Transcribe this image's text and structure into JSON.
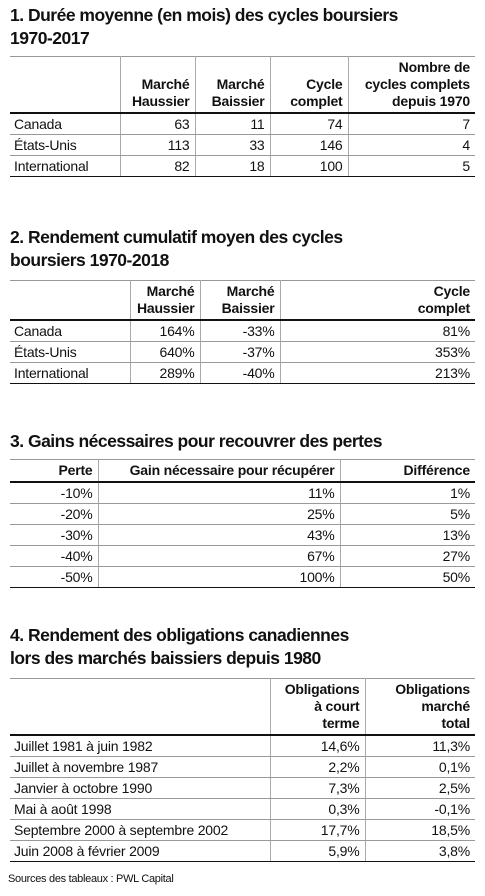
{
  "tables": [
    {
      "title": [
        "1. Durée moyenne (en mois) des cycles boursiers",
        "1970-2017"
      ],
      "columns": [
        [
          "Marché",
          "Haussier"
        ],
        [
          "Marché",
          "Baissier"
        ],
        [
          "Cycle",
          "complet"
        ],
        [
          "Nombre de",
          "cycles complets",
          "depuis 1970"
        ]
      ],
      "rows": [
        [
          "Canada",
          "63",
          "11",
          "74",
          "7"
        ],
        [
          "États-Unis",
          "113",
          "33",
          "146",
          "4"
        ],
        [
          "International",
          "82",
          "18",
          "100",
          "5"
        ]
      ]
    },
    {
      "title": [
        "2. Rendement cumulatif moyen des cycles",
        "boursiers 1970-2018"
      ],
      "columns": [
        [
          "Marché",
          "Haussier"
        ],
        [
          "Marché",
          "Baissier"
        ],
        [
          "Cycle",
          "complet"
        ]
      ],
      "rows": [
        [
          "Canada",
          "164%",
          "-33%",
          "81%"
        ],
        [
          "États-Unis",
          "640%",
          "-37%",
          "353%"
        ],
        [
          "International",
          "289%",
          "-40%",
          "213%"
        ]
      ]
    },
    {
      "title": [
        "3. Gains nécessaires pour recouvrer des pertes"
      ],
      "columns": [
        [
          "Perte"
        ],
        [
          "Gain nécessaire pour récupérer"
        ],
        [
          "Différence"
        ]
      ],
      "rows": [
        [
          "-10%",
          "11%",
          "1%"
        ],
        [
          "-20%",
          "25%",
          "5%"
        ],
        [
          "-30%",
          "43%",
          "13%"
        ],
        [
          "-40%",
          "67%",
          "27%"
        ],
        [
          "-50%",
          "100%",
          "50%"
        ]
      ]
    },
    {
      "title": [
        "4. Rendement des obligations canadiennes",
        "lors des marchés baissiers depuis 1980"
      ],
      "columns": [
        [
          "Obligations",
          "à court",
          "terme"
        ],
        [
          "Obligations",
          "marché",
          "total"
        ]
      ],
      "rows": [
        [
          "Juillet 1981 à juin 1982",
          "14,6%",
          "11,3%"
        ],
        [
          "Juillet à novembre 1987",
          "2,2%",
          "0,1%"
        ],
        [
          "Janvier à octobre 1990",
          "7,3%",
          "2,5%"
        ],
        [
          "Mai à août 1998",
          "0,3%",
          "-0,1%"
        ],
        [
          "Septembre 2000 à septembre 2002",
          "17,7%",
          "18,5%"
        ],
        [
          "Juin 2008 à février 2009",
          "5,9%",
          "3,8%"
        ]
      ]
    }
  ],
  "source": "Sources des tableaux : PWL Capital"
}
